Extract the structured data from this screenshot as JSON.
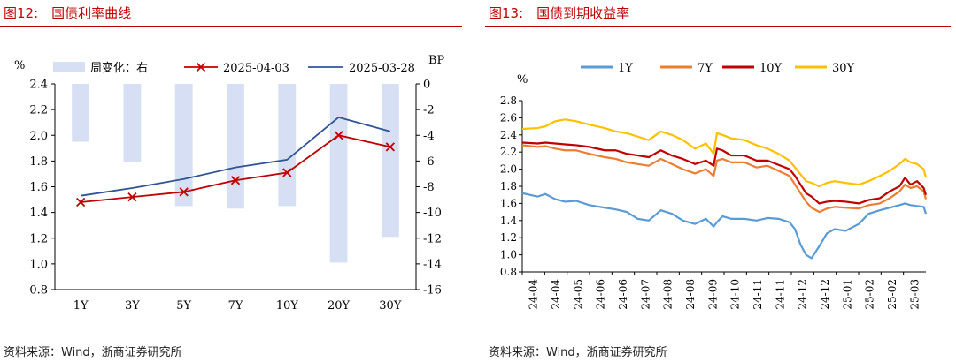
{
  "left_panel": {
    "title": "图12:　国债利率曲线",
    "source": "资料来源：Wind，浙商证券研究所"
  },
  "right_panel": {
    "title": "图13:　国债到期收益率",
    "source": "资料来源：Wind，浙商证券研究所"
  },
  "chart_data": [
    {
      "type": "bar+line",
      "title": "",
      "ylabel": "%",
      "y2label": "BP",
      "categories": [
        "1Y",
        "3Y",
        "5Y",
        "7Y",
        "10Y",
        "20Y",
        "30Y"
      ],
      "ylim": [
        0.8,
        2.4
      ],
      "yticks": [
        "0.8",
        "1.0",
        "1.2",
        "1.4",
        "1.6",
        "1.8",
        "2.0",
        "2.2",
        "2.4"
      ],
      "y2lim": [
        -16,
        0
      ],
      "y2ticks": [
        "0",
        "-2",
        "-4",
        "-6",
        "-8",
        "-10",
        "-12",
        "-14",
        "-16"
      ],
      "legend": [
        "周变化：右",
        "2025-04-03",
        "2025-03-28"
      ],
      "legend_position": "top",
      "grid": false,
      "bars": {
        "name": "周变化：右",
        "axis": "right",
        "color": "#d6dff3",
        "values": [
          -4.5,
          -6.1,
          -9.5,
          -9.7,
          -9.5,
          -13.9,
          -11.9
        ]
      },
      "series": [
        {
          "name": "2025-04-03",
          "axis": "left",
          "color": "#c00000",
          "marker": "x",
          "values": [
            1.48,
            1.52,
            1.56,
            1.65,
            1.71,
            2.0,
            1.91
          ]
        },
        {
          "name": "2025-03-28",
          "axis": "left",
          "color": "#2f5496",
          "marker": "none",
          "values": [
            1.53,
            1.59,
            1.66,
            1.75,
            1.81,
            2.14,
            2.03
          ]
        }
      ]
    },
    {
      "type": "line",
      "title": "",
      "ylabel": "%",
      "ylim": [
        0.8,
        2.8
      ],
      "yticks": [
        "0.8",
        "1.0",
        "1.2",
        "1.4",
        "1.6",
        "1.8",
        "2.0",
        "2.2",
        "2.4",
        "2.6",
        "2.8"
      ],
      "xticks": [
        "24-04",
        "24-04",
        "24-05",
        "24-06",
        "24-06",
        "24-07",
        "24-08",
        "24-08",
        "24-09",
        "24-10",
        "24-11",
        "24-11",
        "24-12",
        "24-12",
        "25-01",
        "25-02",
        "25-02",
        "25-03"
      ],
      "legend_position": "top",
      "grid": false,
      "x": [
        "24-04-01",
        "24-04-15",
        "24-04-22",
        "24-05-01",
        "24-05-10",
        "24-05-20",
        "24-06-01",
        "24-06-15",
        "24-06-25",
        "24-07-05",
        "24-07-15",
        "24-07-25",
        "24-08-05",
        "24-08-15",
        "24-08-25",
        "24-09-05",
        "24-09-15",
        "24-09-22",
        "24-09-25",
        "24-09-30",
        "24-10-08",
        "24-10-20",
        "24-10-31",
        "24-11-10",
        "24-11-20",
        "24-11-30",
        "24-12-05",
        "24-12-10",
        "24-12-15",
        "24-12-20",
        "24-12-27",
        "25-01-03",
        "25-01-10",
        "25-01-20",
        "25-02-01",
        "25-02-10",
        "25-02-20",
        "25-03-01",
        "25-03-10",
        "25-03-15",
        "25-03-20",
        "25-03-26",
        "25-04-01",
        "25-04-03"
      ],
      "series": [
        {
          "name": "1Y",
          "color": "#5b9bd5",
          "values": [
            1.72,
            1.68,
            1.71,
            1.65,
            1.62,
            1.63,
            1.58,
            1.55,
            1.53,
            1.5,
            1.42,
            1.4,
            1.52,
            1.48,
            1.4,
            1.36,
            1.42,
            1.33,
            1.38,
            1.45,
            1.42,
            1.42,
            1.4,
            1.43,
            1.42,
            1.38,
            1.3,
            1.12,
            1.0,
            0.96,
            1.1,
            1.25,
            1.3,
            1.28,
            1.36,
            1.48,
            1.52,
            1.55,
            1.58,
            1.6,
            1.58,
            1.57,
            1.56,
            1.48
          ]
        },
        {
          "name": "7Y",
          "color": "#ed7d31",
          "values": [
            2.28,
            2.26,
            2.27,
            2.24,
            2.22,
            2.22,
            2.18,
            2.14,
            2.12,
            2.08,
            2.06,
            2.04,
            2.12,
            2.06,
            2.0,
            1.95,
            2.0,
            1.92,
            2.1,
            2.12,
            2.08,
            2.08,
            2.02,
            2.04,
            1.98,
            1.92,
            1.82,
            1.72,
            1.62,
            1.55,
            1.5,
            1.54,
            1.56,
            1.55,
            1.54,
            1.58,
            1.6,
            1.66,
            1.74,
            1.82,
            1.78,
            1.8,
            1.74,
            1.65
          ]
        },
        {
          "name": "10Y",
          "color": "#c00000",
          "values": [
            2.31,
            2.3,
            2.31,
            2.3,
            2.29,
            2.28,
            2.26,
            2.22,
            2.22,
            2.18,
            2.16,
            2.14,
            2.22,
            2.16,
            2.12,
            2.06,
            2.1,
            2.04,
            2.24,
            2.22,
            2.16,
            2.16,
            2.1,
            2.1,
            2.05,
            2.0,
            1.92,
            1.82,
            1.72,
            1.68,
            1.6,
            1.62,
            1.63,
            1.62,
            1.6,
            1.64,
            1.66,
            1.74,
            1.8,
            1.9,
            1.82,
            1.86,
            1.78,
            1.7
          ]
        },
        {
          "name": "30Y",
          "color": "#ffc000",
          "values": [
            2.47,
            2.48,
            2.5,
            2.56,
            2.58,
            2.56,
            2.52,
            2.48,
            2.44,
            2.42,
            2.38,
            2.34,
            2.44,
            2.4,
            2.34,
            2.24,
            2.3,
            2.18,
            2.42,
            2.4,
            2.36,
            2.34,
            2.28,
            2.24,
            2.18,
            2.1,
            2.02,
            1.94,
            1.86,
            1.84,
            1.8,
            1.84,
            1.86,
            1.84,
            1.82,
            1.86,
            1.92,
            1.98,
            2.06,
            2.12,
            2.08,
            2.06,
            2.0,
            1.9
          ]
        }
      ]
    }
  ]
}
